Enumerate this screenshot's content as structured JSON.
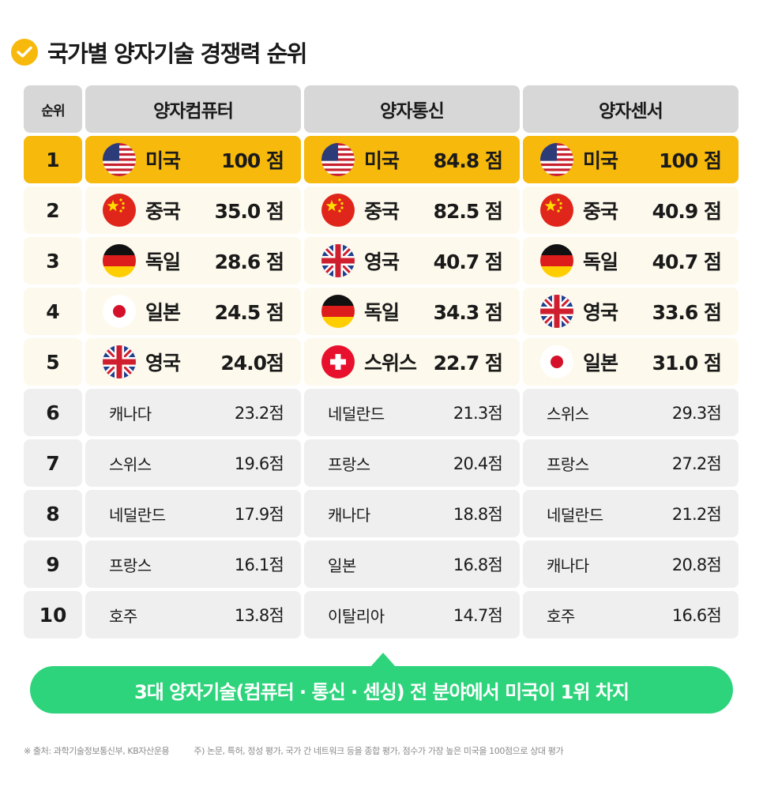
{
  "title": "국가별 양자기술 경쟁력 순위",
  "colors": {
    "gold": "#f6b90c",
    "green": "#2dd47c",
    "header_gray": "#d7d7d7",
    "top_cream": "#fdf9ec",
    "rest_gray": "#efefef"
  },
  "chart_data": {
    "type": "table",
    "title": "국가별 양자기술 경쟁력 순위",
    "columns": [
      "순위",
      "양자컴퓨터",
      "양자통신",
      "양자센서"
    ],
    "rows": [
      {
        "rank": "1",
        "cells": [
          {
            "country": "미국",
            "score": "100 점",
            "flag": "us"
          },
          {
            "country": "미국",
            "score": "84.8 점",
            "flag": "us"
          },
          {
            "country": "미국",
            "score": "100 점",
            "flag": "us"
          }
        ]
      },
      {
        "rank": "2",
        "cells": [
          {
            "country": "중국",
            "score": "35.0 점",
            "flag": "cn"
          },
          {
            "country": "중국",
            "score": "82.5 점",
            "flag": "cn"
          },
          {
            "country": "중국",
            "score": "40.9 점",
            "flag": "cn"
          }
        ]
      },
      {
        "rank": "3",
        "cells": [
          {
            "country": "독일",
            "score": "28.6 점",
            "flag": "de"
          },
          {
            "country": "영국",
            "score": "40.7 점",
            "flag": "uk"
          },
          {
            "country": "독일",
            "score": "40.7 점",
            "flag": "de"
          }
        ]
      },
      {
        "rank": "4",
        "cells": [
          {
            "country": "일본",
            "score": "24.5 점",
            "flag": "jp"
          },
          {
            "country": "독일",
            "score": "34.3 점",
            "flag": "de"
          },
          {
            "country": "영국",
            "score": "33.6 점",
            "flag": "uk"
          }
        ]
      },
      {
        "rank": "5",
        "cells": [
          {
            "country": "영국",
            "score": "24.0점",
            "flag": "uk"
          },
          {
            "country": "스위스",
            "score": "22.7 점",
            "flag": "ch"
          },
          {
            "country": "일본",
            "score": "31.0 점",
            "flag": "jp"
          }
        ]
      },
      {
        "rank": "6",
        "cells": [
          {
            "country": "캐나다",
            "score": "23.2점"
          },
          {
            "country": "네덜란드",
            "score": "21.3점"
          },
          {
            "country": "스위스",
            "score": "29.3점"
          }
        ]
      },
      {
        "rank": "7",
        "cells": [
          {
            "country": "스위스",
            "score": "19.6점"
          },
          {
            "country": "프랑스",
            "score": "20.4점"
          },
          {
            "country": "프랑스",
            "score": "27.2점"
          }
        ]
      },
      {
        "rank": "8",
        "cells": [
          {
            "country": "네덜란드",
            "score": "17.9점"
          },
          {
            "country": "캐나다",
            "score": "18.8점"
          },
          {
            "country": "네덜란드",
            "score": "21.2점"
          }
        ]
      },
      {
        "rank": "9",
        "cells": [
          {
            "country": "프랑스",
            "score": "16.1점"
          },
          {
            "country": "일본",
            "score": "16.8점"
          },
          {
            "country": "캐나다",
            "score": "20.8점"
          }
        ]
      },
      {
        "rank": "10",
        "cells": [
          {
            "country": "호주",
            "score": "13.8점"
          },
          {
            "country": "이탈리아",
            "score": "14.7점"
          },
          {
            "country": "호주",
            "score": "16.6점"
          }
        ]
      }
    ]
  },
  "banner": "3대 양자기술(컴퓨터 · 통신 · 센싱) 전 분야에서 미국이 1위 차지",
  "footnotes": {
    "source": "※ 출처: 과학기술정보통신부, KB자산운용",
    "note": "주) 논문, 특허, 정성 평가, 국가 간 네트워크 등을 종합 평가, 점수가 가장 높은 미국을 100점으로 상대 평가"
  }
}
